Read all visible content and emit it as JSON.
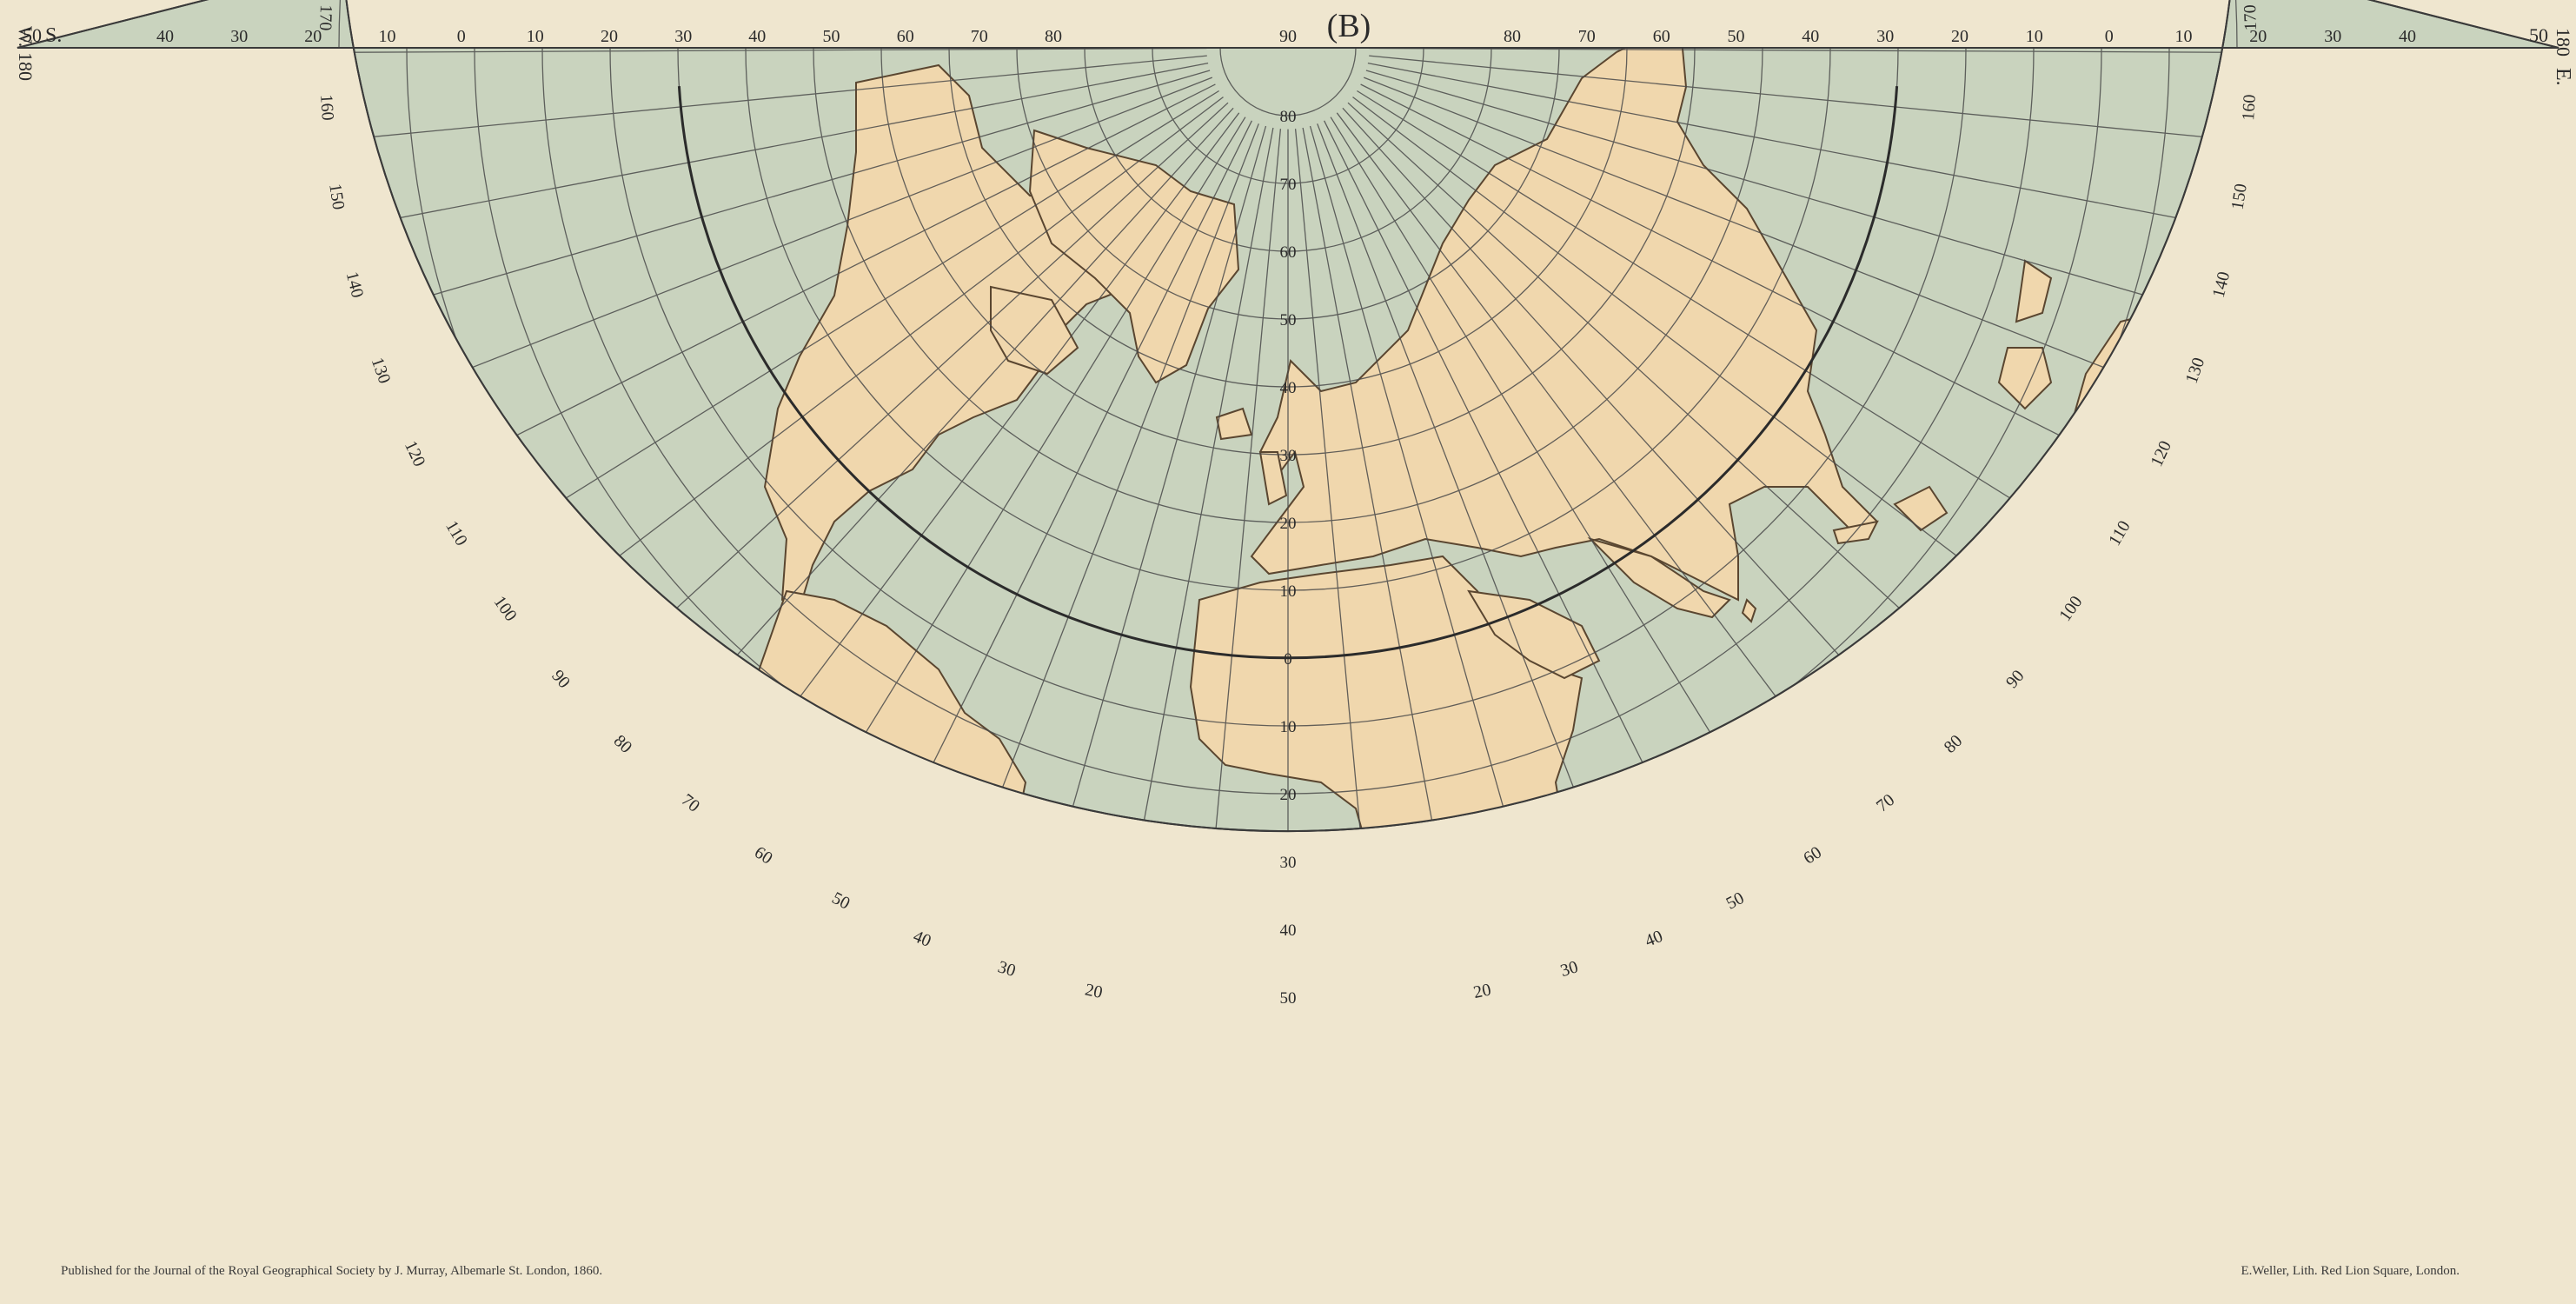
{
  "map": {
    "title": "(B)",
    "corner_left_w": "W.",
    "corner_left_deg": "180",
    "corner_left_lat": "50",
    "corner_left_s": "S.",
    "corner_right_lat": "50",
    "corner_right_deg": "180",
    "corner_right_e": "E.",
    "imprint_left": "Published for the Journal of the Royal Geographical Society by J. Murray, Albemarle St. London, 1860.",
    "imprint_right": "E.Weller, Lith. Red Lion Square, London.",
    "top_left_labels": [
      "40",
      "30",
      "20",
      "10",
      "0",
      "10",
      "20",
      "30",
      "40",
      "50",
      "60",
      "70",
      "80"
    ],
    "top_center_label": "90",
    "top_right_labels": [
      "80",
      "70",
      "60",
      "50",
      "40",
      "30",
      "20",
      "10",
      "0",
      "10",
      "20",
      "30",
      "40"
    ],
    "lat_center_labels_north": [
      "80",
      "70",
      "60",
      "50",
      "40",
      "30",
      "20",
      "10"
    ],
    "lat_center_label_equator": "0",
    "lat_center_labels_south": [
      "10",
      "20",
      "30",
      "40",
      "50"
    ],
    "left_edge_labels": [
      "170",
      "160",
      "150",
      "140",
      "130",
      "120",
      "110",
      "100",
      "90",
      "80",
      "70",
      "60",
      "50",
      "40",
      "30",
      "20"
    ],
    "right_edge_labels": [
      "170",
      "160",
      "150",
      "140",
      "130",
      "120",
      "110",
      "100",
      "90",
      "80",
      "70",
      "60",
      "50",
      "40",
      "30",
      "20"
    ],
    "colors": {
      "sea": "#c9d3be",
      "land": "#f0d7ad",
      "paper": "#efe6cf",
      "grid": "#4a4a4a",
      "coast": "#5a4630"
    }
  }
}
